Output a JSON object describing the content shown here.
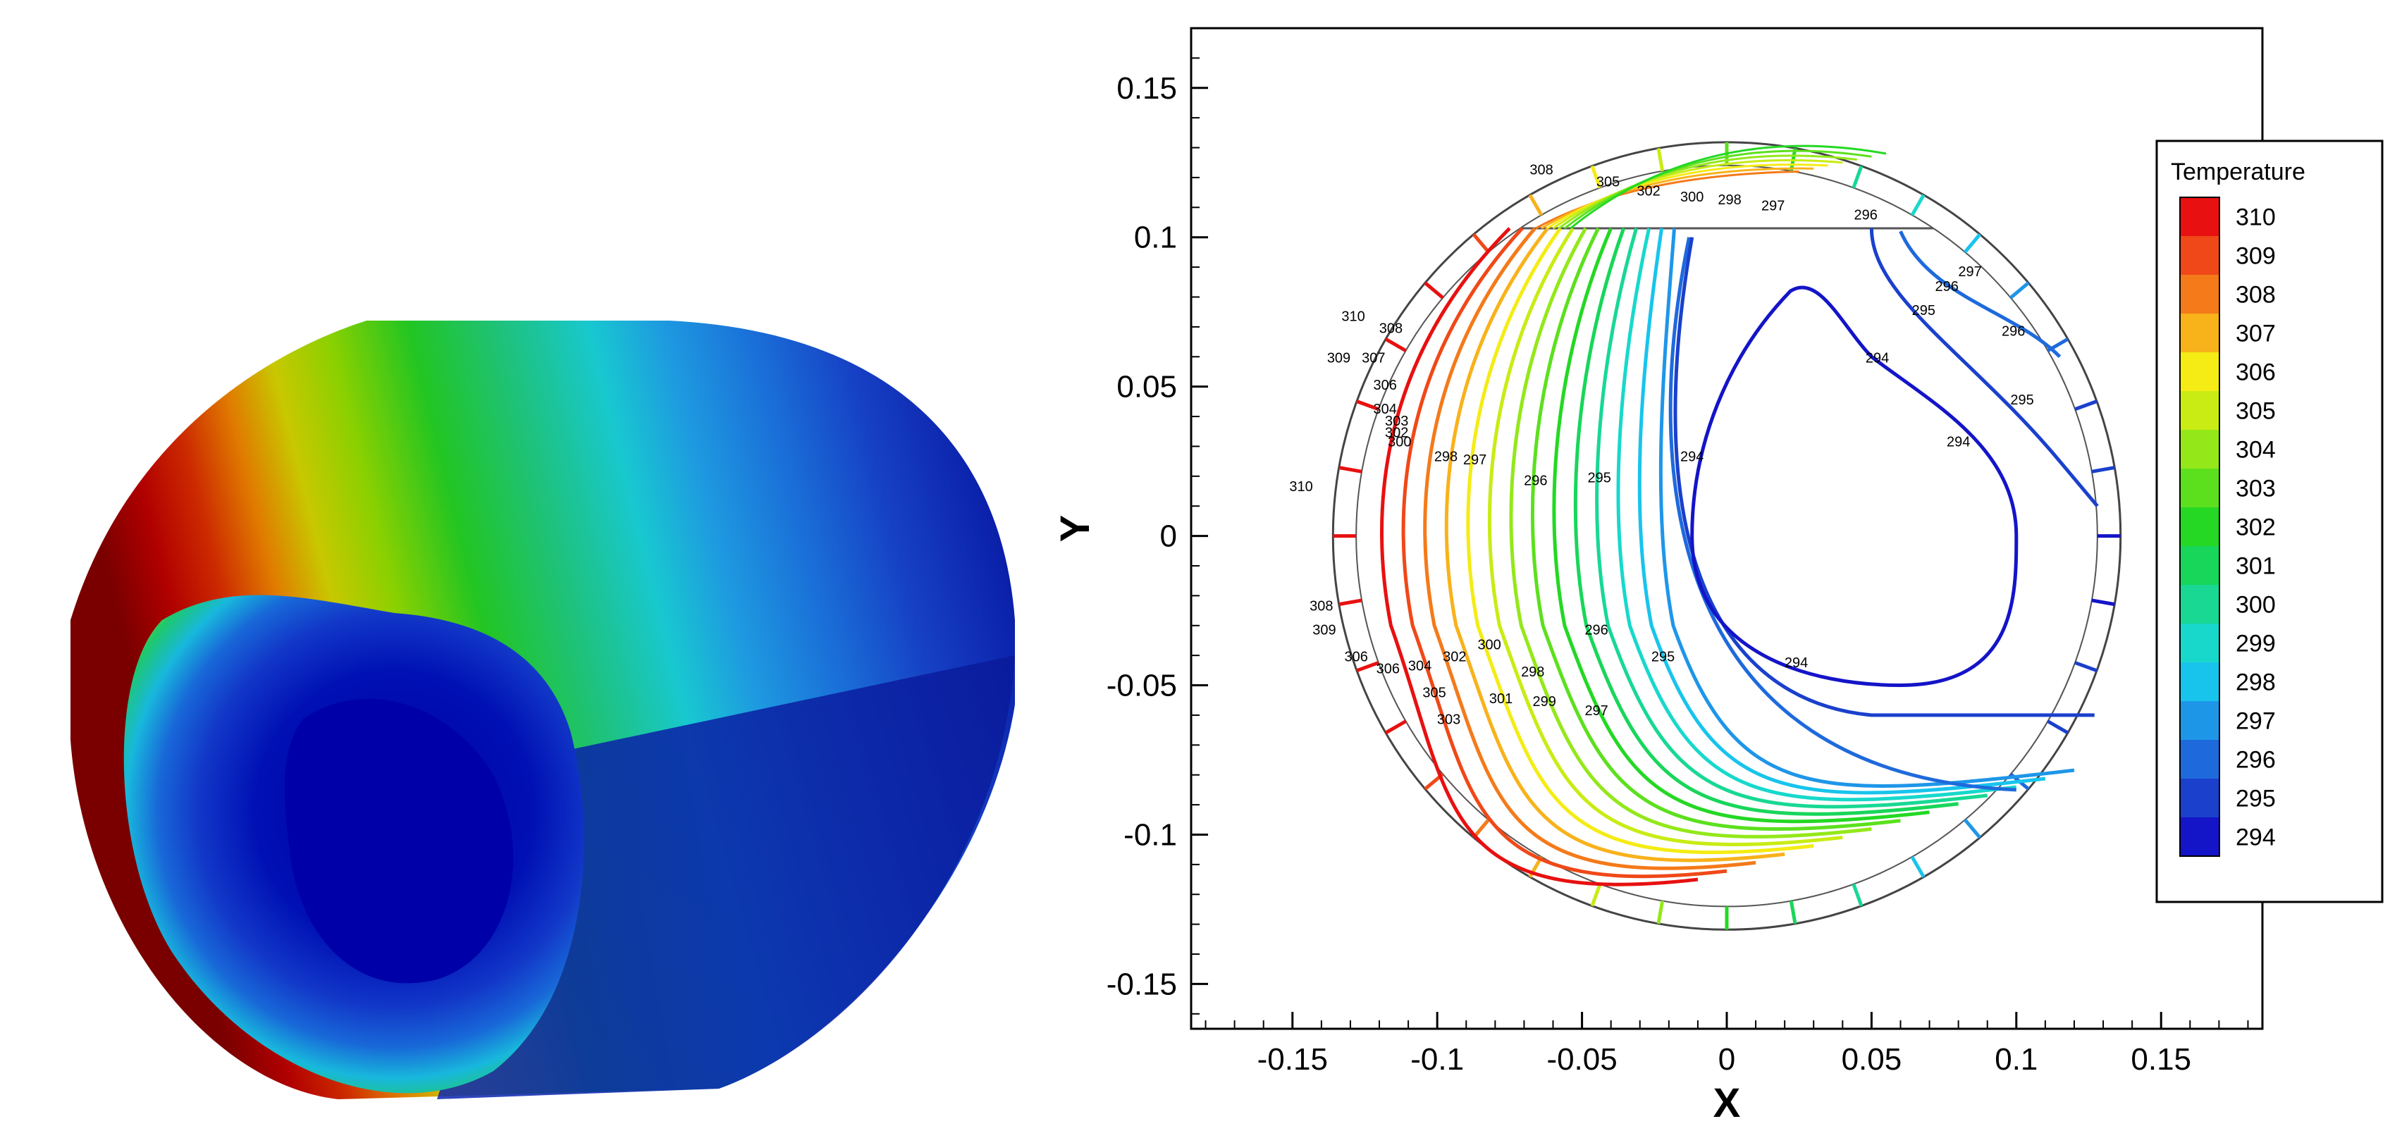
{
  "chart_data": [
    {
      "type": "surface-3d",
      "description_colors": {
        "hot": "#c80000",
        "mid": "#22c522",
        "cold": "#0000b0"
      }
    },
    {
      "type": "contour",
      "xlabel": "X",
      "ylabel": "Y",
      "xlim": [
        -0.185,
        0.185
      ],
      "ylim": [
        -0.165,
        0.17
      ],
      "xticks": [
        {
          "value": -0.15,
          "label": "-0.15"
        },
        {
          "value": -0.1,
          "label": "-0.1"
        },
        {
          "value": -0.05,
          "label": "-0.05"
        },
        {
          "value": 0,
          "label": "0"
        },
        {
          "value": 0.05,
          "label": "0.05"
        },
        {
          "value": 0.1,
          "label": "0.1"
        },
        {
          "value": 0.15,
          "label": "0.15"
        }
      ],
      "yticks": [
        {
          "value": 0.15,
          "label": "0.15"
        },
        {
          "value": 0.1,
          "label": "0.1"
        },
        {
          "value": 0.05,
          "label": "0.05"
        },
        {
          "value": 0,
          "label": "0"
        },
        {
          "value": -0.05,
          "label": "-0.05"
        },
        {
          "value": -0.1,
          "label": "-0.1"
        },
        {
          "value": -0.15,
          "label": "-0.15"
        }
      ],
      "outer_radius": 0.136,
      "inner_radius": 0.128,
      "flat_top_y": 0.103,
      "legend": {
        "title": "Temperature",
        "placement": "right",
        "levels": [
          {
            "value": "310",
            "color": "#e81010"
          },
          {
            "value": "309",
            "color": "#f04818"
          },
          {
            "value": "308",
            "color": "#f47a1a"
          },
          {
            "value": "307",
            "color": "#f8b21a"
          },
          {
            "value": "306",
            "color": "#f4ec14"
          },
          {
            "value": "305",
            "color": "#c8ec14"
          },
          {
            "value": "304",
            "color": "#94e81a"
          },
          {
            "value": "303",
            "color": "#5ce01e"
          },
          {
            "value": "302",
            "color": "#24d824"
          },
          {
            "value": "301",
            "color": "#18d65a"
          },
          {
            "value": "300",
            "color": "#18d894"
          },
          {
            "value": "299",
            "color": "#18d8cc"
          },
          {
            "value": "298",
            "color": "#18c4ec"
          },
          {
            "value": "297",
            "color": "#1e96e8"
          },
          {
            "value": "296",
            "color": "#1e6adc"
          },
          {
            "value": "295",
            "color": "#1a40cc"
          },
          {
            "value": "294",
            "color": "#1414c8"
          }
        ]
      },
      "contour_labels": [
        {
          "text": "308",
          "x": -0.064,
          "y": 0.121
        },
        {
          "text": "305",
          "x": -0.041,
          "y": 0.117
        },
        {
          "text": "302",
          "x": -0.027,
          "y": 0.114
        },
        {
          "text": "300",
          "x": -0.012,
          "y": 0.112
        },
        {
          "text": "298",
          "x": 0.001,
          "y": 0.111
        },
        {
          "text": "297",
          "x": 0.016,
          "y": 0.109
        },
        {
          "text": "296",
          "x": 0.048,
          "y": 0.106
        },
        {
          "text": "297",
          "x": 0.084,
          "y": 0.087
        },
        {
          "text": "296",
          "x": 0.076,
          "y": 0.082
        },
        {
          "text": "295",
          "x": 0.068,
          "y": 0.074
        },
        {
          "text": "296",
          "x": 0.099,
          "y": 0.067
        },
        {
          "text": "294",
          "x": 0.052,
          "y": 0.058
        },
        {
          "text": "295",
          "x": 0.102,
          "y": 0.044
        },
        {
          "text": "294",
          "x": 0.08,
          "y": 0.03
        },
        {
          "text": "294",
          "x": -0.012,
          "y": 0.025
        },
        {
          "text": "295",
          "x": -0.044,
          "y": 0.018
        },
        {
          "text": "296",
          "x": -0.066,
          "y": 0.017
        },
        {
          "text": "297",
          "x": -0.087,
          "y": 0.024
        },
        {
          "text": "298",
          "x": -0.097,
          "y": 0.025
        },
        {
          "text": "300",
          "x": -0.113,
          "y": 0.03
        },
        {
          "text": "310",
          "x": -0.129,
          "y": 0.072
        },
        {
          "text": "309",
          "x": -0.134,
          "y": 0.058
        },
        {
          "text": "307",
          "x": -0.122,
          "y": 0.058
        },
        {
          "text": "308",
          "x": -0.116,
          "y": 0.068
        },
        {
          "text": "306",
          "x": -0.118,
          "y": 0.049
        },
        {
          "text": "304",
          "x": -0.118,
          "y": 0.041
        },
        {
          "text": "303",
          "x": -0.114,
          "y": 0.037
        },
        {
          "text": "302",
          "x": -0.114,
          "y": 0.033
        },
        {
          "text": "310",
          "x": -0.147,
          "y": 0.015
        },
        {
          "text": "308",
          "x": -0.14,
          "y": -0.025
        },
        {
          "text": "309",
          "x": -0.139,
          "y": -0.033
        },
        {
          "text": "306",
          "x": -0.128,
          "y": -0.042
        },
        {
          "text": "306",
          "x": -0.117,
          "y": -0.046
        },
        {
          "text": "304",
          "x": -0.106,
          "y": -0.045
        },
        {
          "text": "305",
          "x": -0.101,
          "y": -0.054
        },
        {
          "text": "303",
          "x": -0.096,
          "y": -0.063
        },
        {
          "text": "302",
          "x": -0.094,
          "y": -0.042
        },
        {
          "text": "300",
          "x": -0.082,
          "y": -0.038
        },
        {
          "text": "301",
          "x": -0.078,
          "y": -0.056
        },
        {
          "text": "298",
          "x": -0.067,
          "y": -0.047
        },
        {
          "text": "299",
          "x": -0.063,
          "y": -0.057
        },
        {
          "text": "297",
          "x": -0.045,
          "y": -0.06
        },
        {
          "text": "296",
          "x": -0.045,
          "y": -0.033
        },
        {
          "text": "295",
          "x": -0.022,
          "y": -0.042
        },
        {
          "text": "294",
          "x": 0.024,
          "y": -0.044
        }
      ]
    }
  ]
}
